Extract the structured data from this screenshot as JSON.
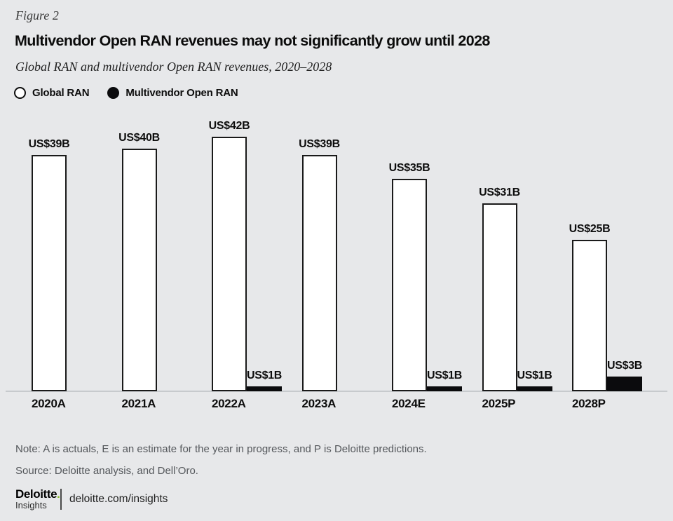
{
  "figure_label": "Figure 2",
  "title": "Multivendor Open RAN revenues may not significantly grow until 2028",
  "subtitle": "Global RAN and multivendor Open RAN revenues, 2020–2028",
  "legend": {
    "items": [
      {
        "label": "Global RAN",
        "swatch": "white-circle"
      },
      {
        "label": "Multivendor Open RAN",
        "swatch": "black-circle"
      }
    ]
  },
  "chart_data": {
    "type": "bar",
    "title": "Global RAN and multivendor Open RAN revenues, 2020-2028",
    "categories": [
      "2020A",
      "2021A",
      "2022A",
      "2023A",
      "2024E",
      "2025P",
      "2028P"
    ],
    "series": [
      {
        "name": "Global RAN",
        "values": [
          39,
          40,
          42,
          39,
          35,
          31,
          25
        ],
        "labels": [
          "US$39B",
          "US$40B",
          "US$42B",
          "US$39B",
          "US$35B",
          "US$31B",
          "US$25B"
        ],
        "color": "#ffffff"
      },
      {
        "name": "Multivendor Open RAN",
        "values": [
          null,
          null,
          1,
          null,
          1,
          1,
          3
        ],
        "labels": [
          null,
          null,
          "US$1B",
          null,
          "US$1B",
          "US$1B",
          "US$3B"
        ],
        "color": "#0b0b0d"
      }
    ],
    "unit": "billions USD",
    "ylim": [
      0,
      42
    ],
    "grid": false,
    "value_labels": "above-bars",
    "legend_position": "top-left"
  },
  "note": "Note: A is actuals, E is an estimate for the year in progress, and P is Deloitte predictions.",
  "source": "Source: Deloitte analysis, and Dell’Oro.",
  "footer": {
    "brand": "Deloitte",
    "brand_dot": ".",
    "brand_sub": "Insights",
    "link": "deloitte.com/insights"
  },
  "colors": {
    "background": "#e7e8ea",
    "bar_fill": "#ffffff",
    "bar_border": "#1a1a1a",
    "open_ran_fill": "#0b0b0d",
    "axis_line": "#c7cacd",
    "note_text": "#54575b",
    "accent_green": "#86bc25"
  }
}
